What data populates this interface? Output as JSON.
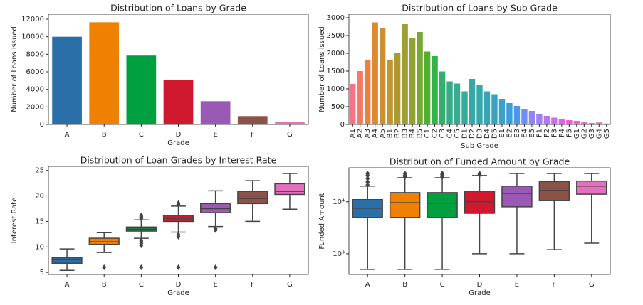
{
  "chart_data": [
    {
      "type": "bar",
      "title": "Distribution of Loans by Grade",
      "xlabel": "Grade",
      "ylabel": "Number of Loans issued",
      "categories": [
        "A",
        "B",
        "C",
        "D",
        "E",
        "F",
        "G"
      ],
      "values": [
        10000,
        11650,
        7850,
        5050,
        2650,
        950,
        300
      ],
      "colors": [
        "#2a6fa8",
        "#f08000",
        "#00a040",
        "#d0182e",
        "#9b59b6",
        "#8b5347",
        "#e56fbf"
      ],
      "ylim": [
        0,
        12570
      ],
      "yticks": [
        0,
        2000,
        4000,
        6000,
        8000,
        10000,
        12000
      ]
    },
    {
      "type": "bar",
      "title": "Distribution of Loans by Sub Grade",
      "xlabel": "Sub Grade",
      "ylabel": "Number of Loans issued",
      "categories": [
        "A1",
        "A2",
        "A3",
        "A4",
        "A5",
        "B1",
        "B2",
        "B3",
        "B4",
        "B5",
        "C1",
        "C2",
        "C3",
        "C4",
        "C5",
        "D1",
        "D2",
        "D3",
        "D4",
        "D5",
        "E1",
        "E2",
        "E3",
        "E4",
        "E5",
        "F1",
        "F2",
        "F3",
        "F4",
        "F5",
        "G1",
        "G2",
        "G3",
        "G4",
        "G5"
      ],
      "values": [
        1140,
        1500,
        1800,
        2870,
        2720,
        1800,
        2000,
        2820,
        2440,
        2600,
        2050,
        1920,
        1490,
        1210,
        1150,
        930,
        1280,
        1120,
        930,
        850,
        720,
        600,
        520,
        430,
        380,
        300,
        240,
        190,
        150,
        120,
        100,
        75,
        40,
        55,
        25
      ],
      "colors": [
        "#f77189",
        "#f67a60",
        "#ec8138",
        "#dc8932",
        "#cc8f32",
        "#bd9632",
        "#ae9a32",
        "#9e9e32",
        "#8fa232",
        "#78a932",
        "#50b131",
        "#32b247",
        "#34af6d",
        "#35ad82",
        "#36ab90",
        "#36aa9b",
        "#37a8a4",
        "#38a7ac",
        "#38a5b4",
        "#39a3be",
        "#3ba1c9",
        "#3d9dd7",
        "#4b97e8",
        "#6e8ff4",
        "#8d87f4",
        "#a27ff4",
        "#b576f4",
        "#c96ef4",
        "#dd62ea",
        "#f15bd5",
        "#f45fc2",
        "#f563b2",
        "#f566a4",
        "#f66a99",
        "#f66d91"
      ],
      "ylim": [
        0,
        3100
      ],
      "yticks": [
        0,
        500,
        1000,
        1500,
        2000,
        2500,
        3000
      ]
    },
    {
      "type": "box",
      "title": "Distribution of Loan Grades by Interest Rate",
      "xlabel": "Grade",
      "ylabel": "Interest Rate",
      "categories": [
        "A",
        "B",
        "C",
        "D",
        "E",
        "F",
        "G"
      ],
      "colors": [
        "#2a6fa8",
        "#f08000",
        "#00a040",
        "#d0182e",
        "#9b59b6",
        "#8b5347",
        "#e56fbf"
      ],
      "boxes": [
        {
          "whislo": 5.4,
          "q1": 6.8,
          "med": 7.5,
          "q3": 7.9,
          "whishi": 9.6,
          "fliers": []
        },
        {
          "whislo": 8.9,
          "q1": 10.5,
          "med": 11.0,
          "q3": 11.7,
          "whishi": 12.8,
          "fliers": [
            6.0
          ]
        },
        {
          "whislo": 11.7,
          "q1": 13.1,
          "med": 13.5,
          "q3": 13.9,
          "whishi": 15.3,
          "fliers": [
            6.0,
            10.3,
            10.7,
            11.0,
            11.3,
            15.6,
            15.9,
            16.2
          ]
        },
        {
          "whislo": 12.9,
          "q1": 15.0,
          "med": 15.6,
          "q3": 16.2,
          "whishi": 18.0,
          "fliers": [
            6.0,
            12.0,
            12.4,
            18.3,
            18.6
          ]
        },
        {
          "whislo": 14.0,
          "q1": 16.7,
          "med": 17.5,
          "q3": 18.5,
          "whishi": 21.0,
          "fliers": [
            6.0,
            13.3,
            13.6
          ]
        },
        {
          "whislo": 15.0,
          "q1": 18.5,
          "med": 19.5,
          "q3": 20.9,
          "whishi": 23.0,
          "fliers": []
        },
        {
          "whislo": 17.4,
          "q1": 20.3,
          "med": 20.9,
          "q3": 22.4,
          "whishi": 24.4,
          "fliers": []
        }
      ],
      "ylim": [
        4.6,
        25.8
      ],
      "yticks": [
        5,
        10,
        15,
        20,
        25
      ]
    },
    {
      "type": "box",
      "title": "Distribution of Funded Amount by Grade",
      "xlabel": "Grade",
      "ylabel": "Funded Amount",
      "yscale": "log",
      "categories": [
        "A",
        "B",
        "C",
        "D",
        "E",
        "F",
        "G"
      ],
      "colors": [
        "#2a6fa8",
        "#f08000",
        "#00a040",
        "#d0182e",
        "#9b59b6",
        "#8b5347",
        "#e56fbf"
      ],
      "boxes": [
        {
          "whislo": 500,
          "q1": 5000,
          "med": 7500,
          "q3": 11000,
          "whishi": 20000,
          "fliers": [
            21000,
            24000,
            28000,
            32000,
            35000
          ]
        },
        {
          "whislo": 500,
          "q1": 5000,
          "med": 9600,
          "q3": 15000,
          "whishi": 29000,
          "fliers": [
            30000,
            32000,
            35000
          ]
        },
        {
          "whislo": 500,
          "q1": 5000,
          "med": 9400,
          "q3": 15000,
          "whishi": 29000,
          "fliers": [
            30000,
            33000,
            35000
          ]
        },
        {
          "whislo": 1000,
          "q1": 6000,
          "med": 10000,
          "q3": 16000,
          "whishi": 32000,
          "fliers": [
            33000,
            35000
          ]
        },
        {
          "whislo": 1000,
          "q1": 8000,
          "med": 14500,
          "q3": 20000,
          "whishi": 35000,
          "fliers": []
        },
        {
          "whislo": 1200,
          "q1": 10500,
          "med": 16500,
          "q3": 24500,
          "whishi": 35000,
          "fliers": []
        },
        {
          "whislo": 1600,
          "q1": 14000,
          "med": 20000,
          "q3": 25000,
          "whishi": 35000,
          "fliers": []
        }
      ],
      "ylim": [
        400,
        45000
      ],
      "yticks": [
        {
          "value": 1000,
          "label": "10³"
        },
        {
          "value": 10000,
          "label": "10⁴"
        }
      ]
    }
  ]
}
